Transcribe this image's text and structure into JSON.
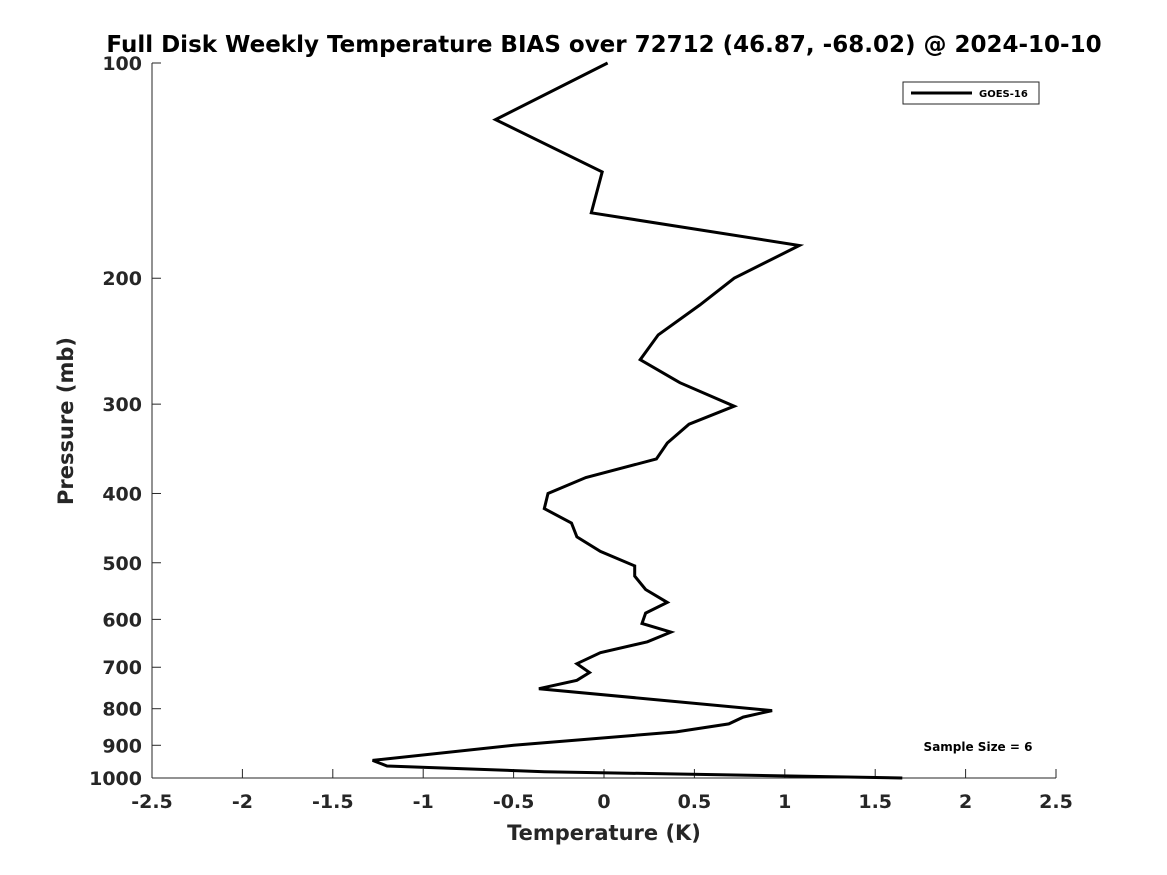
{
  "chart_data": {
    "type": "line",
    "title": "Full Disk Weekly Temperature BIAS over 72712 (46.87, -68.02) @ 2024-10-10",
    "xlabel": "Temperature (K)",
    "ylabel": "Pressure (mb)",
    "xlim": [
      -2.5,
      2.5
    ],
    "ylim": [
      100,
      1000
    ],
    "yscale": "log",
    "yreversed": true,
    "xticks": [
      -2.5,
      -2,
      -1.5,
      -1,
      -0.5,
      0,
      0.5,
      1,
      1.5,
      2,
      2.5
    ],
    "xtick_labels": [
      "-2.5",
      "-2",
      "-1.5",
      "-1",
      "-0.5",
      "0",
      "0.5",
      "1",
      "1.5",
      "2",
      "2.5"
    ],
    "yticks": [
      100,
      200,
      300,
      400,
      500,
      600,
      700,
      800,
      900,
      1000
    ],
    "ytick_labels": [
      "100",
      "200",
      "300",
      "400",
      "500",
      "600",
      "700",
      "800",
      "900",
      "1000"
    ],
    "grid": false,
    "legend_position": "top-right",
    "annotation": "Sample Size = 6",
    "series": [
      {
        "name": "GOES-16",
        "color": "#000000",
        "points": [
          {
            "t": 0.02,
            "p": 100
          },
          {
            "t": -0.6,
            "p": 120
          },
          {
            "t": -0.01,
            "p": 142
          },
          {
            "t": -0.07,
            "p": 162
          },
          {
            "t": 1.08,
            "p": 180
          },
          {
            "t": 0.72,
            "p": 200
          },
          {
            "t": 0.53,
            "p": 218
          },
          {
            "t": 0.3,
            "p": 240
          },
          {
            "t": 0.2,
            "p": 260
          },
          {
            "t": 0.42,
            "p": 280
          },
          {
            "t": 0.72,
            "p": 302
          },
          {
            "t": 0.47,
            "p": 320
          },
          {
            "t": 0.35,
            "p": 340
          },
          {
            "t": 0.29,
            "p": 358
          },
          {
            "t": -0.1,
            "p": 380
          },
          {
            "t": -0.31,
            "p": 400
          },
          {
            "t": -0.33,
            "p": 420
          },
          {
            "t": -0.18,
            "p": 440
          },
          {
            "t": -0.15,
            "p": 460
          },
          {
            "t": -0.02,
            "p": 482
          },
          {
            "t": 0.17,
            "p": 505
          },
          {
            "t": 0.17,
            "p": 522
          },
          {
            "t": 0.23,
            "p": 545
          },
          {
            "t": 0.35,
            "p": 568
          },
          {
            "t": 0.23,
            "p": 588
          },
          {
            "t": 0.21,
            "p": 608
          },
          {
            "t": 0.37,
            "p": 625
          },
          {
            "t": 0.24,
            "p": 645
          },
          {
            "t": -0.02,
            "p": 668
          },
          {
            "t": -0.15,
            "p": 692
          },
          {
            "t": -0.08,
            "p": 712
          },
          {
            "t": -0.15,
            "p": 730
          },
          {
            "t": -0.36,
            "p": 750
          },
          {
            "t": 0.93,
            "p": 805
          },
          {
            "t": 0.77,
            "p": 822
          },
          {
            "t": 0.69,
            "p": 840
          },
          {
            "t": 0.4,
            "p": 862
          },
          {
            "t": -0.5,
            "p": 900
          },
          {
            "t": -1.28,
            "p": 945
          },
          {
            "t": -1.2,
            "p": 962
          },
          {
            "t": -0.33,
            "p": 980
          },
          {
            "t": 1.65,
            "p": 1000
          }
        ]
      }
    ]
  }
}
